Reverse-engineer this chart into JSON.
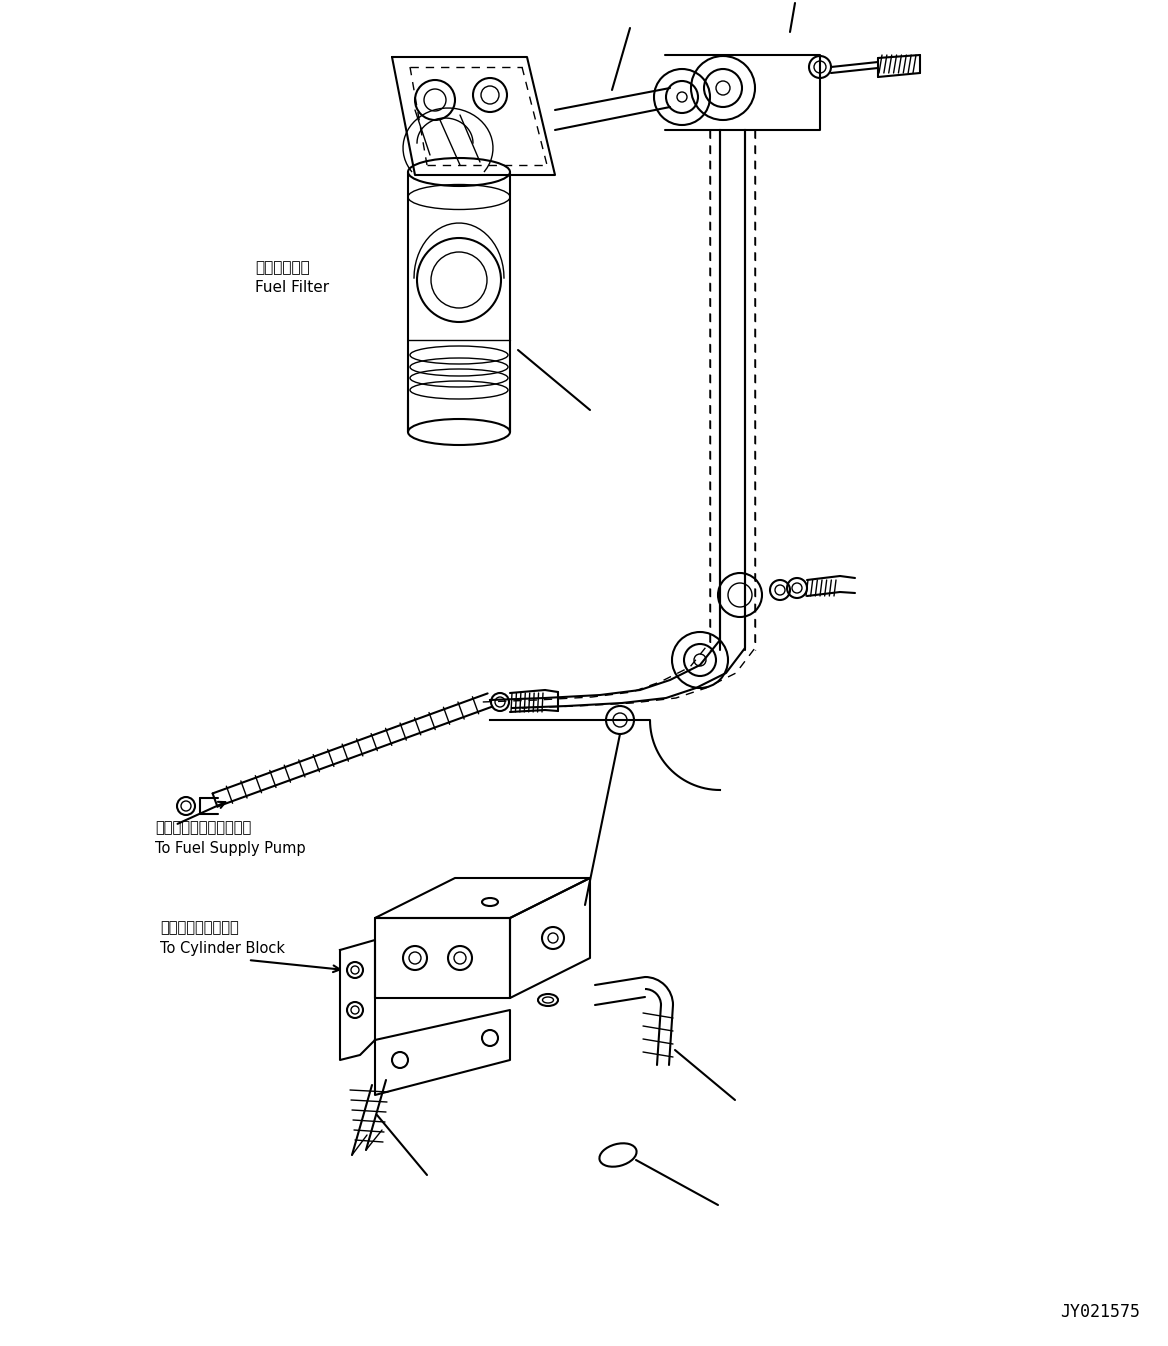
{
  "background_color": "#ffffff",
  "line_color": "#000000",
  "watermark": "JY021575",
  "label_fuel_filter_jp": "燃料フィルタ",
  "label_fuel_filter_en": "Fuel Filter",
  "label_fuel_pump_jp": "フェルサプライポンプへ",
  "label_fuel_pump_en": "To Fuel Supply Pump",
  "label_cylinder_jp": "シリンダブロックへ",
  "label_cylinder_en": "To Cylinder Block",
  "figsize": [
    11.68,
    13.46
  ],
  "dpi": 100
}
